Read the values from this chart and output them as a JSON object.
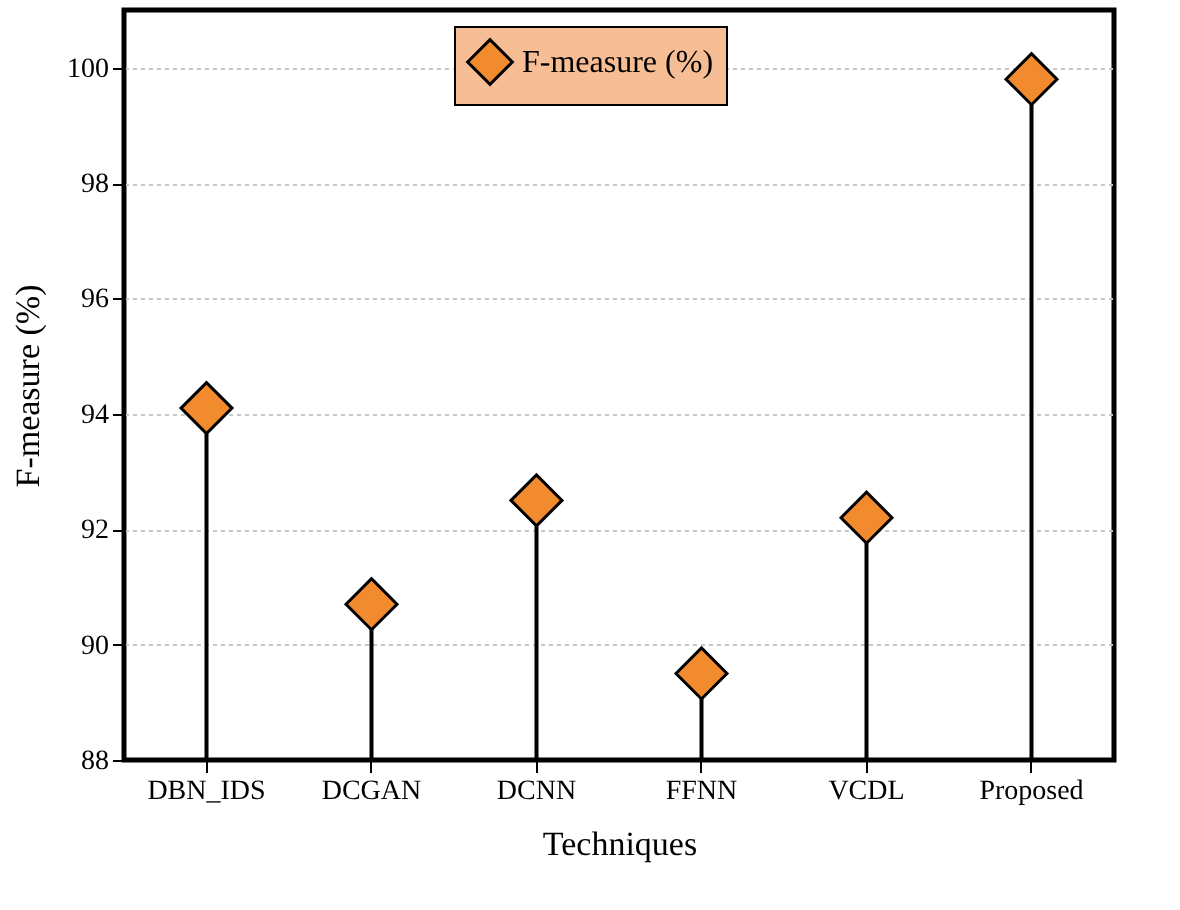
{
  "chart_data": {
    "type": "lollipop",
    "xlabel": "Techniques",
    "ylabel": "F-measure (%)",
    "categories": [
      "DBN_IDS",
      "DCGAN",
      "DCNN",
      "FFNN",
      "VCDL",
      "Proposed"
    ],
    "series": [
      {
        "name": "F-measure (%)",
        "color": "#f28a2e",
        "values": [
          94.1,
          90.7,
          92.5,
          89.5,
          92.2,
          99.8
        ]
      }
    ],
    "ylim": [
      88,
      101
    ],
    "yticks": [
      88,
      90,
      92,
      94,
      96,
      98,
      100
    ],
    "grid": "y",
    "legend": "top",
    "marker": "diamond"
  }
}
